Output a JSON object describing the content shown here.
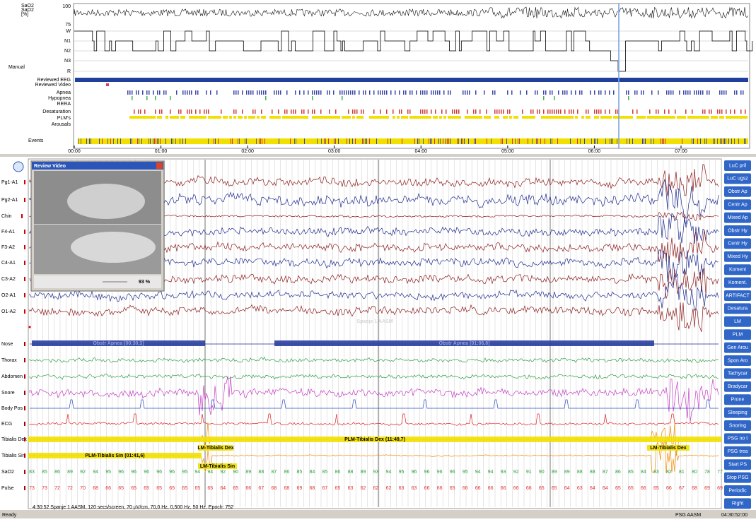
{
  "overview": {
    "sao2_labels": [
      "SaO2",
      "SaO2",
      "[%]"
    ],
    "sao2_scale": [
      "100",
      "75"
    ],
    "hypnogram_stages": [
      "W",
      "N1",
      "N2",
      "N3",
      "R"
    ],
    "hypnogram_label": "Manual",
    "review_rows": [
      "Reviewed EEG",
      "Reviewed Video"
    ],
    "event_rows": [
      "Apnea",
      "Hypopnea",
      "RERA",
      "Desaturation",
      "PLM's",
      "Arousals"
    ],
    "events_label": "Events",
    "time_ticks": [
      "00:00",
      "01:00",
      "02:00",
      "03:00",
      "04:00",
      "05:00",
      "06:00",
      "07:00"
    ]
  },
  "channels": [
    "Pg1-A1",
    "Pg2-A1",
    "Chin",
    "F4-A1",
    "F3-A2",
    "C4-A1",
    "C3-A2",
    "O2-A1",
    "O1-A2",
    "Nose",
    "Thorax",
    "Abdomen",
    "Snore",
    "Body Pos",
    "ECG",
    "Tibialis Dex",
    "Tibialis Sin",
    "SaO2",
    "Pulse"
  ],
  "annotations": [
    "Obstr Apnea [00:30,3]",
    "Obstr Apnea [01:06,8]",
    "PLM-Tibialis Dex (11:49,7)",
    "LM-Tibialis Dex",
    "LM-Tibialis Dex",
    "PLM-Tibialis Sin (01:41,6)",
    "LM-Tibialis Sin"
  ],
  "watermark": "Spanje 1 AASM",
  "sao2_values": [
    83,
    85,
    86,
    89,
    92,
    94,
    95,
    96,
    96,
    96,
    96,
    96,
    95,
    94,
    94,
    92,
    90,
    89,
    88,
    87,
    86,
    85,
    84,
    85,
    86,
    88,
    89,
    93,
    94,
    95,
    96,
    96,
    96,
    96,
    95,
    94,
    94,
    93,
    92,
    91,
    90,
    89,
    89,
    88,
    88,
    87,
    86,
    85,
    84,
    83,
    82,
    81,
    80,
    78,
    77
  ],
  "pulse_values": [
    73,
    73,
    72,
    72,
    70,
    68,
    66,
    65,
    65,
    65,
    65,
    65,
    65,
    65,
    65,
    64,
    65,
    66,
    67,
    68,
    68,
    69,
    68,
    67,
    65,
    63,
    62,
    62,
    62,
    63,
    63,
    66,
    66,
    65,
    66,
    66,
    66,
    66,
    66,
    66,
    65,
    65,
    64,
    63,
    64,
    64,
    65,
    65,
    66,
    65,
    66,
    67,
    68,
    69,
    69
  ],
  "video": {
    "title": "Review Video",
    "zoom": "93 %"
  },
  "buttons": [
    "LuC pril",
    "LuC ugsz",
    "Obstr Ap",
    "Centr Ap",
    "Mixed Ap",
    "Obstr Hy",
    "Centr Hy",
    "Mixed Hy",
    "Koment",
    "Koment.",
    "ARTIFACT",
    "Desatura",
    "LM",
    "PLM",
    "Gen Arou",
    "Spon Aro",
    "Tachycar",
    "Bradycar",
    "Prone",
    "Sleeping",
    "Snoring",
    "PSG no t",
    "PSG trea",
    "Start PS",
    "Stop PSG",
    "Periodic",
    "Right"
  ],
  "status": {
    "info": "4:30:52 Spanje 1 AASM, 120 secs/screen, 70 µV/cm, 70,0 Hz, 0,500 Hz, 50 Hz, Epoch: 752",
    "ready": "Ready",
    "mode": "PSG AASM",
    "time": "04:30:52:00"
  }
}
